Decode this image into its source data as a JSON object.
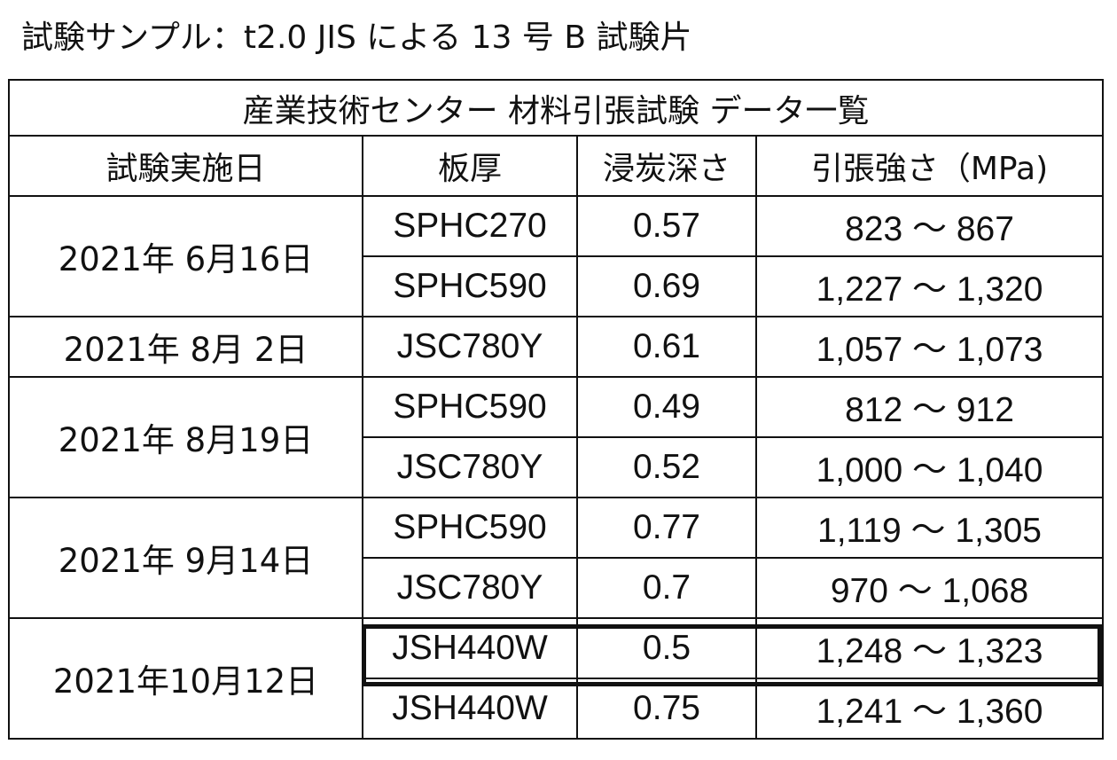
{
  "caption": "試験サンプル：t2.0 JIS による 13 号 B 試験片",
  "table": {
    "title": "産業技術センター 材料引張試験 データ一覧",
    "headers": [
      "試験実施日",
      "板厚",
      "浸炭深さ",
      "引張強さ（MPa)"
    ],
    "groups": [
      {
        "date": "2021年 6月16日",
        "rows": [
          {
            "material": "SPHC270",
            "depth": "0.57",
            "strength": "823 ～ 867"
          },
          {
            "material": "SPHC590",
            "depth": "0.69",
            "strength": "1,227 ～ 1,320"
          }
        ]
      },
      {
        "date": "2021年 8月 2日",
        "rows": [
          {
            "material": "JSC780Y",
            "depth": "0.61",
            "strength": "1,057 ～ 1,073"
          }
        ]
      },
      {
        "date": "2021年 8月19日",
        "rows": [
          {
            "material": "SPHC590",
            "depth": "0.49",
            "strength": "812 ～ 912"
          },
          {
            "material": "JSC780Y",
            "depth": "0.52",
            "strength": "1,000 ～ 1,040"
          }
        ]
      },
      {
        "date": "2021年 9月14日",
        "rows": [
          {
            "material": "SPHC590",
            "depth": "0.77",
            "strength": "1,119 ～ 1,305"
          },
          {
            "material": "JSC780Y",
            "depth": "0.7",
            "strength": "970 ～ 1,068"
          }
        ]
      },
      {
        "date": "2021年10月12日",
        "rows": [
          {
            "material": "JSH440W",
            "depth": "0.5",
            "strength": "1,248 ～ 1,323",
            "highlighted": true
          },
          {
            "material": "JSH440W",
            "depth": "0.75",
            "strength": "1,241 ～ 1,360"
          }
        ]
      }
    ]
  },
  "colors": {
    "border": "#111111",
    "background": "#ffffff",
    "text": "#111111"
  }
}
